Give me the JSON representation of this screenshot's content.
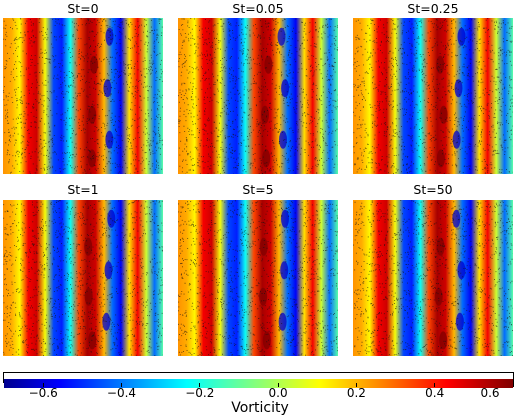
{
  "chart_data": {
    "type": "heatmap",
    "panels": [
      {
        "title": "St=0"
      },
      {
        "title": "St=0.05"
      },
      {
        "title": "St=0.25"
      },
      {
        "title": "St=1"
      },
      {
        "title": "St=5"
      },
      {
        "title": "St=50"
      }
    ],
    "colorbar": {
      "label": "Vorticity",
      "range": [
        -0.7,
        0.6
      ],
      "colormap": "jet",
      "ticks": [
        -0.6,
        -0.4,
        -0.2,
        0.0,
        0.2,
        0.4,
        0.6
      ],
      "tick_labels": [
        "−0.6",
        "−0.4",
        "−0.2",
        "0.0",
        "0.2",
        "0.4",
        "0.6"
      ]
    },
    "vorticity_profile": [
      0.25,
      0.22,
      0.12,
      0.45,
      0.5,
      0.1,
      -0.45,
      -0.5,
      -0.2,
      0.35,
      0.55,
      0.5,
      0.2,
      -0.4,
      -0.55,
      0.15,
      0.45,
      0.05,
      -0.4,
      -0.1
    ],
    "particles_overlay": true
  }
}
